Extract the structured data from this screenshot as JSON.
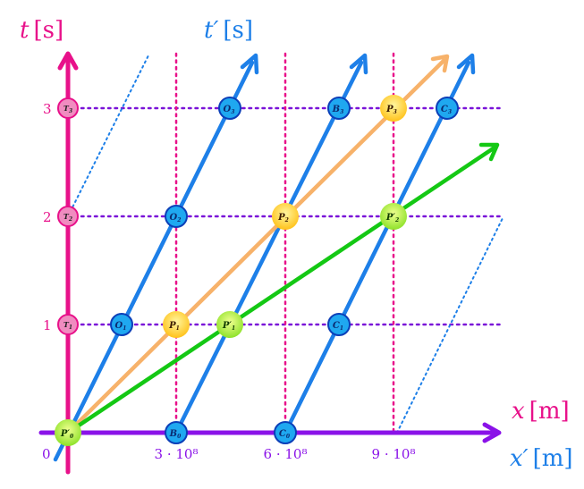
{
  "axes": {
    "t": {
      "var": "t",
      "unit": "[s]"
    },
    "t_prime": {
      "var": "t′",
      "unit": "[s]"
    },
    "x": {
      "var": "x",
      "unit": "[m]"
    },
    "x_prime": {
      "var": "x′",
      "unit": "[m]"
    }
  },
  "ticks": {
    "t": [
      "1",
      "2",
      "3"
    ],
    "x": [
      "0",
      "3 · 10⁸",
      "6 · 10⁸",
      "9 · 10⁸"
    ]
  },
  "colors": {
    "t_axis": "#e8118a",
    "x_axis": "#8a12e8",
    "primed": "#1d7fe8",
    "grid_t": "#7a13d8",
    "grid_x": "#e8118a",
    "worldline_orange": "#f7b26a",
    "worldline_green": "#14c814",
    "node_blue": "#1fa8f0",
    "node_pink": "#f08cc0",
    "node_yellow": "#ffd21e",
    "node_green": "#9be82e"
  },
  "nodes": {
    "T1": {
      "main": "T",
      "sub": "1"
    },
    "T2": {
      "main": "T",
      "sub": "2"
    },
    "T3": {
      "main": "T",
      "sub": "3"
    },
    "O1": {
      "main": "O",
      "sub": "1"
    },
    "O2": {
      "main": "O",
      "sub": "2"
    },
    "O3": {
      "main": "O",
      "sub": "3"
    },
    "B0": {
      "main": "B",
      "sub": "0"
    },
    "B3": {
      "main": "B",
      "sub": "3"
    },
    "C0": {
      "main": "C",
      "sub": "0"
    },
    "C1": {
      "main": "C",
      "sub": "1"
    },
    "C3": {
      "main": "C",
      "sub": "3"
    },
    "P1": {
      "main": "P",
      "sub": "1"
    },
    "P2": {
      "main": "P",
      "sub": "2"
    },
    "P3": {
      "main": "P",
      "sub": "3"
    },
    "P0p": {
      "main": "P′",
      "sub": "0"
    },
    "P1p": {
      "main": "P′",
      "sub": "1"
    },
    "P2p": {
      "main": "P′",
      "sub": "2"
    }
  }
}
